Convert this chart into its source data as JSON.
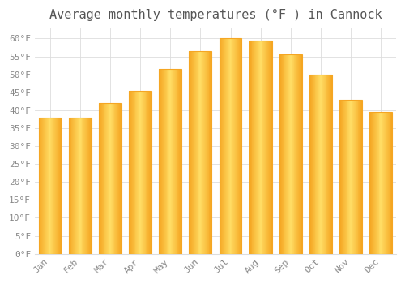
{
  "title": "Average monthly temperatures (°F ) in Cannock",
  "months": [
    "Jan",
    "Feb",
    "Mar",
    "Apr",
    "May",
    "Jun",
    "Jul",
    "Aug",
    "Sep",
    "Oct",
    "Nov",
    "Dec"
  ],
  "values": [
    38,
    38,
    42,
    45.5,
    51.5,
    56.5,
    60,
    59.5,
    55.5,
    50,
    43,
    39.5
  ],
  "bar_color_center": "#FFD966",
  "bar_color_edge": "#F5A623",
  "background_color": "#FFFFFF",
  "grid_color": "#DDDDDD",
  "text_color": "#888888",
  "title_color": "#555555",
  "ylim": [
    0,
    63
  ],
  "yticks": [
    0,
    5,
    10,
    15,
    20,
    25,
    30,
    35,
    40,
    45,
    50,
    55,
    60
  ],
  "ylabel_suffix": "°F",
  "title_fontsize": 11,
  "tick_fontsize": 8,
  "bar_width": 0.75
}
